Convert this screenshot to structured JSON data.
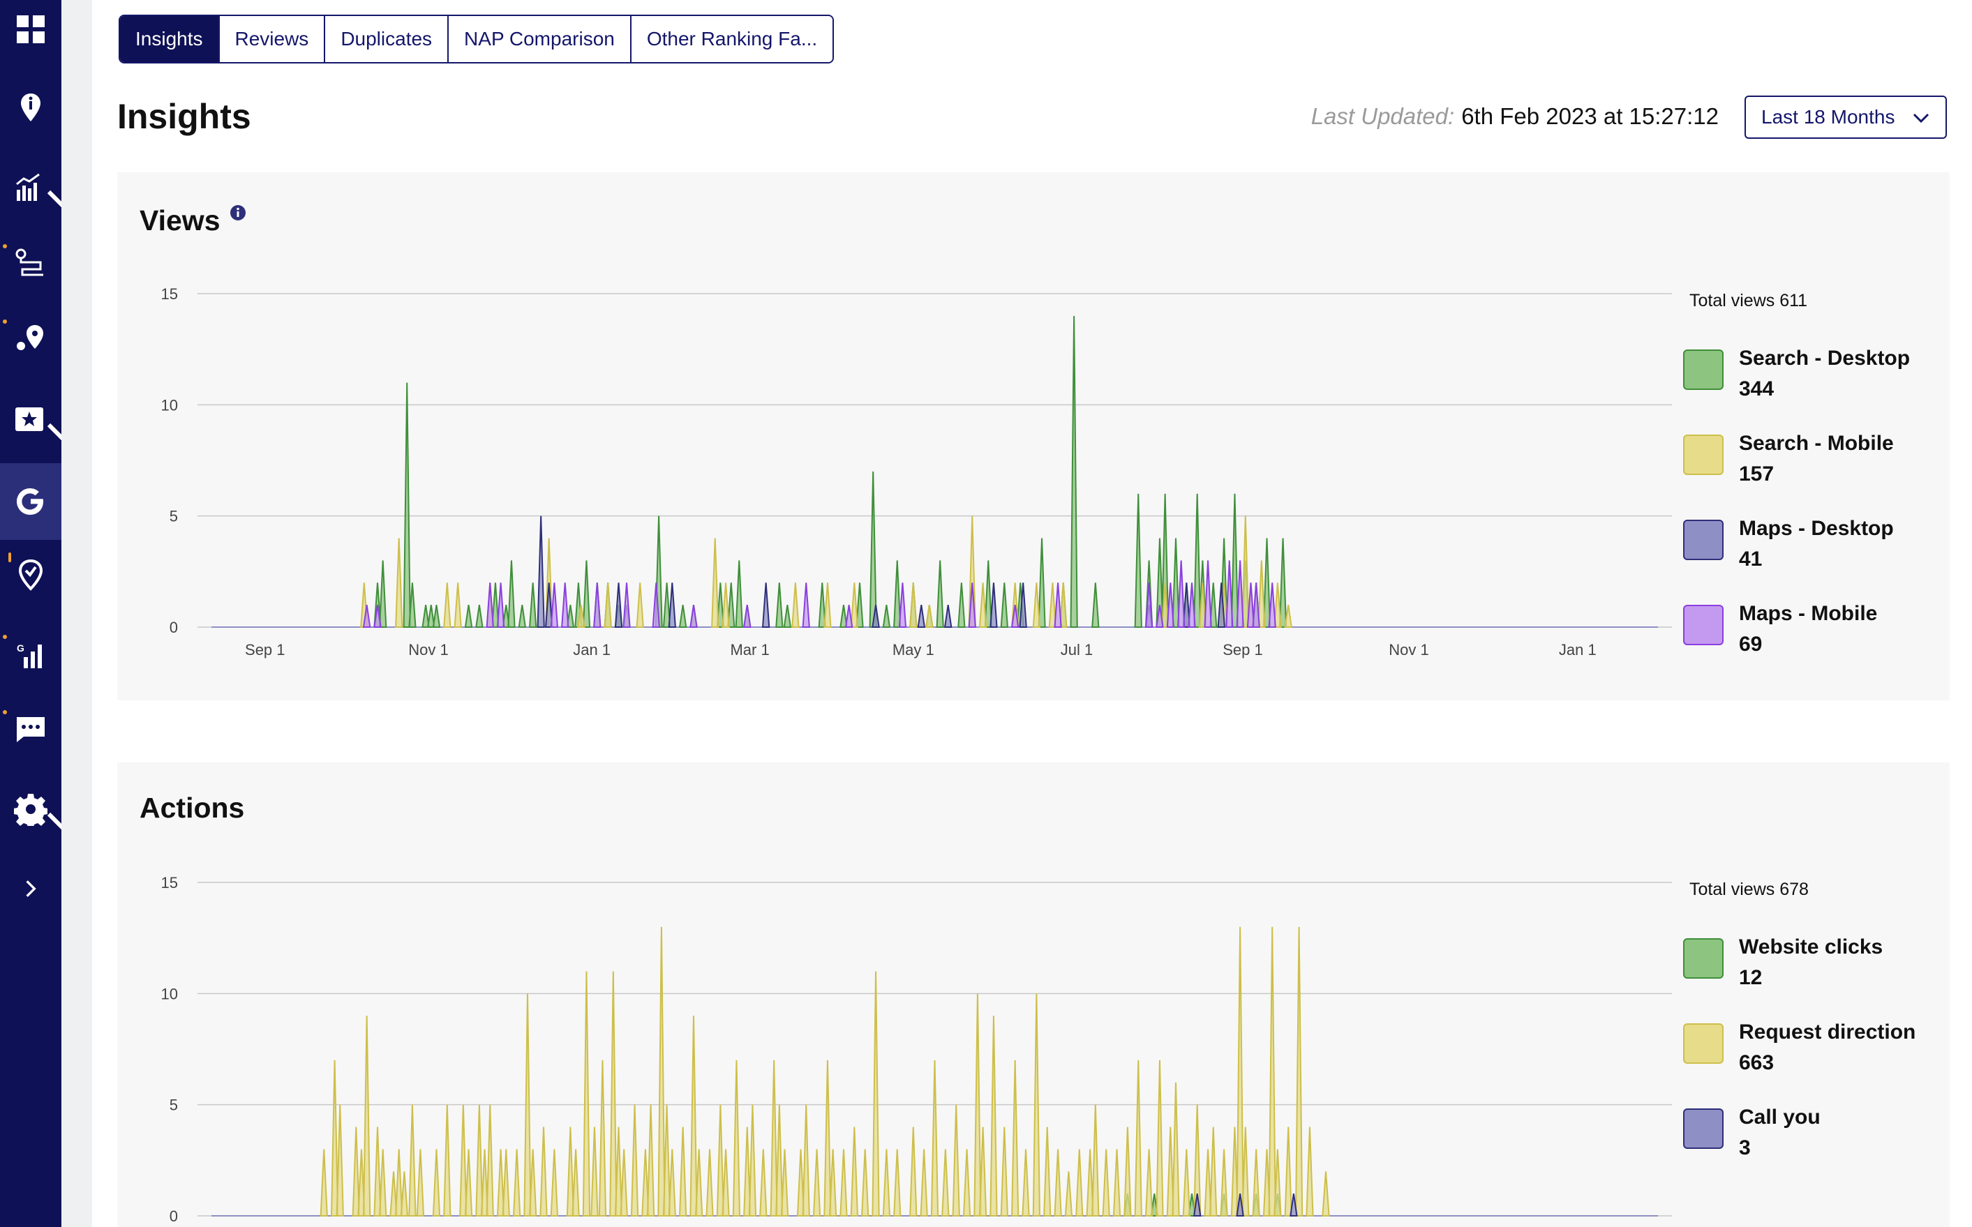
{
  "tabs": [
    {
      "label": "Insights",
      "active": true
    },
    {
      "label": "Reviews",
      "active": false
    },
    {
      "label": "Duplicates",
      "active": false
    },
    {
      "label": "NAP Comparison",
      "active": false
    },
    {
      "label": "Other Ranking Fa...",
      "active": false
    }
  ],
  "header": {
    "title": "Insights",
    "last_updated_label": "Last Updated:",
    "last_updated_value": "6th Feb 2023 at 15:27:12",
    "range_select": "Last 18 Months"
  },
  "sidebar": {
    "items": [
      {
        "icon": "dashboard-grid-icon"
      },
      {
        "icon": "location-info-icon"
      },
      {
        "icon": "analytics-chart-icon"
      },
      {
        "icon": "route-icon"
      },
      {
        "icon": "map-pins-icon"
      },
      {
        "icon": "star-rating-icon"
      },
      {
        "icon": "google-icon",
        "active": true
      },
      {
        "icon": "map-alert-icon"
      },
      {
        "icon": "local-rank-icon"
      },
      {
        "icon": "messages-icon"
      },
      {
        "icon": "settings-gear-icon"
      },
      {
        "icon": "expand-chevron-icon"
      }
    ]
  },
  "colors": {
    "sidebar_bg": "#0f1156",
    "accent": "#14166a",
    "search_desktop": "#8dc47f",
    "search_mobile": "#e6dc8a",
    "maps_desktop": "#8e8fc4",
    "maps_mobile": "#c49af0"
  },
  "views": {
    "title": "Views",
    "total_label": "Total views 611",
    "legend": [
      {
        "name": "Search - Desktop",
        "value": "344",
        "color": "#8dc47f",
        "stroke": "#3f8f3a"
      },
      {
        "name": "Search - Mobile",
        "value": "157",
        "color": "#e6dc8a",
        "stroke": "#cdbf4a"
      },
      {
        "name": "Maps - Desktop",
        "value": "41",
        "color": "#8e8fc4",
        "stroke": "#2e2f7a"
      },
      {
        "name": "Maps - Mobile",
        "value": "69",
        "color": "#c49af0",
        "stroke": "#8a3fe0"
      }
    ]
  },
  "actions": {
    "title": "Actions",
    "total_label": "Total views 678",
    "legend": [
      {
        "name": "Website clicks",
        "value": "12",
        "color": "#8dc47f",
        "stroke": "#3f8f3a"
      },
      {
        "name": "Request direction",
        "value": "663",
        "color": "#e6dc8a",
        "stroke": "#cdbf4a"
      },
      {
        "name": "Call you",
        "value": "3",
        "color": "#8e8fc4",
        "stroke": "#2e2f7a"
      }
    ]
  },
  "chart_data": [
    {
      "type": "area",
      "title": "Views",
      "ylim": [
        0,
        15
      ],
      "yticks": [
        0,
        5,
        10,
        15
      ],
      "xticks": [
        "Sep 1",
        "Nov 1",
        "Jan 1",
        "Mar 1",
        "May 1",
        "Jul 1",
        "Sep 1",
        "Nov 1",
        "Jan 1"
      ],
      "grid": true,
      "legend_position": "right",
      "series": [
        {
          "name": "Search - Desktop",
          "peaks": [
            [
              62,
              2
            ],
            [
              64,
              3
            ],
            [
              73,
              11
            ],
            [
              75,
              2
            ],
            [
              80,
              1
            ],
            [
              82,
              1
            ],
            [
              84,
              1
            ],
            [
              96,
              1
            ],
            [
              100,
              1
            ],
            [
              106,
              2
            ],
            [
              110,
              1
            ],
            [
              112,
              3
            ],
            [
              116,
              1
            ],
            [
              120,
              2
            ],
            [
              134,
              1
            ],
            [
              137,
              2
            ],
            [
              140,
              3
            ],
            [
              144,
              2
            ],
            [
              148,
              2
            ],
            [
              152,
              1
            ],
            [
              155,
              1
            ],
            [
              167,
              5
            ],
            [
              170,
              2
            ],
            [
              176,
              1
            ],
            [
              180,
              1
            ],
            [
              190,
              2
            ],
            [
              194,
              2
            ],
            [
              197,
              3
            ],
            [
              200,
              1
            ],
            [
              212,
              2
            ],
            [
              215,
              1
            ],
            [
              228,
              2
            ],
            [
              236,
              1
            ],
            [
              242,
              2
            ],
            [
              247,
              7
            ],
            [
              252,
              1
            ],
            [
              256,
              3
            ],
            [
              262,
              2
            ],
            [
              268,
              1
            ],
            [
              272,
              3
            ],
            [
              280,
              2
            ],
            [
              284,
              2
            ],
            [
              290,
              3
            ],
            [
              296,
              2
            ],
            [
              302,
              2
            ],
            [
              310,
              4
            ],
            [
              318,
              2
            ],
            [
              322,
              14
            ],
            [
              330,
              2
            ],
            [
              346,
              6
            ],
            [
              350,
              3
            ],
            [
              354,
              4
            ],
            [
              356,
              6
            ],
            [
              360,
              4
            ],
            [
              364,
              2
            ],
            [
              368,
              6
            ],
            [
              370,
              3
            ],
            [
              374,
              2
            ],
            [
              378,
              4
            ],
            [
              382,
              6
            ],
            [
              386,
              3
            ],
            [
              390,
              2
            ],
            [
              394,
              4
            ],
            [
              400,
              4
            ]
          ]
        },
        {
          "name": "Search - Mobile",
          "peaks": [
            [
              57,
              2
            ],
            [
              70,
              4
            ],
            [
              88,
              2
            ],
            [
              92,
              2
            ],
            [
              104,
              2
            ],
            [
              126,
              4
            ],
            [
              138,
              1
            ],
            [
              148,
              2
            ],
            [
              160,
              2
            ],
            [
              188,
              4
            ],
            [
              192,
              2
            ],
            [
              218,
              2
            ],
            [
              230,
              2
            ],
            [
              240,
              2
            ],
            [
              262,
              2
            ],
            [
              268,
              1
            ],
            [
              284,
              5
            ],
            [
              288,
              2
            ],
            [
              300,
              2
            ],
            [
              308,
              2
            ],
            [
              314,
              2
            ],
            [
              318,
              2
            ],
            [
              356,
              2
            ],
            [
              370,
              2
            ],
            [
              378,
              2
            ],
            [
              386,
              5
            ],
            [
              388,
              2
            ],
            [
              392,
              3
            ],
            [
              398,
              2
            ],
            [
              402,
              1
            ]
          ]
        },
        {
          "name": "Maps - Desktop",
          "peaks": [
            [
              123,
              5
            ],
            [
              126,
              2
            ],
            [
              152,
              2
            ],
            [
              172,
              2
            ],
            [
              207,
              2
            ],
            [
              248,
              1
            ],
            [
              265,
              1
            ],
            [
              275,
              1
            ],
            [
              292,
              2
            ],
            [
              303,
              2
            ],
            [
              350,
              1
            ],
            [
              364,
              2
            ],
            [
              377,
              2
            ]
          ]
        },
        {
          "name": "Maps - Mobile",
          "peaks": [
            [
              58,
              1
            ],
            [
              62,
              1
            ],
            [
              104,
              2
            ],
            [
              108,
              2
            ],
            [
              128,
              2
            ],
            [
              132,
              2
            ],
            [
              144,
              2
            ],
            [
              155,
              2
            ],
            [
              166,
              2
            ],
            [
              180,
              1
            ],
            [
              200,
              1
            ],
            [
              222,
              2
            ],
            [
              238,
              1
            ],
            [
              258,
              2
            ],
            [
              284,
              2
            ],
            [
              300,
              1
            ],
            [
              316,
              2
            ],
            [
              350,
              2
            ],
            [
              354,
              1
            ],
            [
              358,
              2
            ],
            [
              362,
              3
            ],
            [
              366,
              2
            ],
            [
              372,
              3
            ],
            [
              380,
              3
            ],
            [
              384,
              3
            ],
            [
              388,
              2
            ],
            [
              390,
              2
            ],
            [
              396,
              2
            ]
          ]
        }
      ]
    },
    {
      "type": "area",
      "title": "Actions",
      "ylim": [
        0,
        15
      ],
      "yticks": [
        0,
        5,
        10,
        15
      ],
      "grid": true,
      "legend_position": "right",
      "series": [
        {
          "name": "Website clicks",
          "peaks": [
            [
              342,
              1
            ],
            [
              352,
              1
            ],
            [
              366,
              1
            ],
            [
              378,
              1
            ],
            [
              390,
              1
            ],
            [
              398,
              1
            ]
          ]
        },
        {
          "name": "Request direction",
          "peaks": [
            [
              42,
              3
            ],
            [
              46,
              7
            ],
            [
              48,
              5
            ],
            [
              54,
              4
            ],
            [
              56,
              3
            ],
            [
              58,
              9
            ],
            [
              62,
              4
            ],
            [
              64,
              3
            ],
            [
              68,
              2
            ],
            [
              70,
              3
            ],
            [
              72,
              2
            ],
            [
              75,
              5
            ],
            [
              78,
              3
            ],
            [
              84,
              3
            ],
            [
              88,
              5
            ],
            [
              94,
              5
            ],
            [
              96,
              3
            ],
            [
              100,
              5
            ],
            [
              102,
              3
            ],
            [
              104,
              5
            ],
            [
              108,
              3
            ],
            [
              110,
              3
            ],
            [
              114,
              3
            ],
            [
              118,
              10
            ],
            [
              120,
              3
            ],
            [
              124,
              4
            ],
            [
              128,
              3
            ],
            [
              134,
              4
            ],
            [
              136,
              3
            ],
            [
              140,
              11
            ],
            [
              143,
              4
            ],
            [
              146,
              7
            ],
            [
              150,
              11
            ],
            [
              152,
              4
            ],
            [
              154,
              3
            ],
            [
              158,
              5
            ],
            [
              162,
              3
            ],
            [
              164,
              5
            ],
            [
              168,
              13
            ],
            [
              170,
              5
            ],
            [
              172,
              3
            ],
            [
              176,
              4
            ],
            [
              180,
              9
            ],
            [
              182,
              3
            ],
            [
              186,
              3
            ],
            [
              190,
              5
            ],
            [
              192,
              3
            ],
            [
              196,
              7
            ],
            [
              200,
              4
            ],
            [
              202,
              5
            ],
            [
              206,
              3
            ],
            [
              210,
              7
            ],
            [
              212,
              5
            ],
            [
              214,
              3
            ],
            [
              220,
              3
            ],
            [
              222,
              5
            ],
            [
              226,
              3
            ],
            [
              230,
              7
            ],
            [
              232,
              3
            ],
            [
              236,
              3
            ],
            [
              240,
              4
            ],
            [
              244,
              3
            ],
            [
              248,
              11
            ],
            [
              252,
              3
            ],
            [
              256,
              3
            ],
            [
              262,
              4
            ],
            [
              266,
              3
            ],
            [
              270,
              7
            ],
            [
              274,
              3
            ],
            [
              278,
              5
            ],
            [
              282,
              3
            ],
            [
              286,
              10
            ],
            [
              288,
              4
            ],
            [
              292,
              9
            ],
            [
              296,
              4
            ],
            [
              300,
              7
            ],
            [
              304,
              3
            ],
            [
              308,
              10
            ],
            [
              312,
              4
            ],
            [
              316,
              3
            ],
            [
              320,
              2
            ],
            [
              324,
              3
            ],
            [
              328,
              3
            ],
            [
              330,
              5
            ],
            [
              334,
              3
            ],
            [
              338,
              3
            ],
            [
              342,
              4
            ],
            [
              346,
              7
            ],
            [
              350,
              3
            ],
            [
              354,
              7
            ],
            [
              358,
              4
            ],
            [
              360,
              6
            ],
            [
              364,
              3
            ],
            [
              368,
              5
            ],
            [
              372,
              3
            ],
            [
              374,
              4
            ],
            [
              378,
              3
            ],
            [
              382,
              4
            ],
            [
              384,
              13
            ],
            [
              386,
              4
            ],
            [
              390,
              3
            ],
            [
              394,
              3
            ],
            [
              396,
              13
            ],
            [
              398,
              3
            ],
            [
              402,
              4
            ],
            [
              406,
              13
            ],
            [
              410,
              4
            ],
            [
              416,
              2
            ]
          ]
        },
        {
          "name": "Call you",
          "peaks": [
            [
              368,
              1
            ],
            [
              384,
              1
            ],
            [
              404,
              1
            ]
          ]
        }
      ]
    }
  ]
}
